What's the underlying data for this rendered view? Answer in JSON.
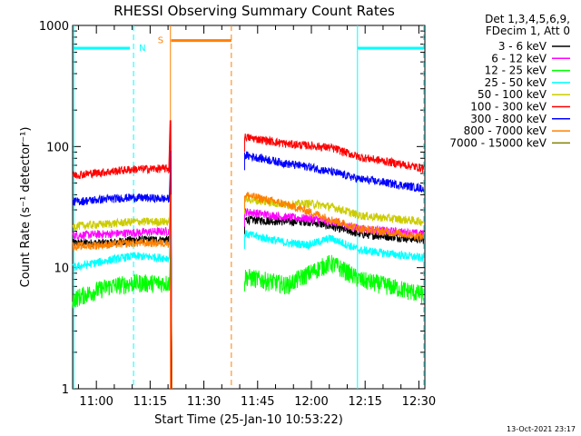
{
  "chart_data": {
    "type": "line",
    "title": "RHESSI Observing Summary Count Rates",
    "xlabel": "Start Time (25-Jan-10 10:53:22)",
    "ylabel": "Count Rate (s⁻¹ detector⁻¹)",
    "yscale": "log",
    "ylim": [
      1,
      1000
    ],
    "xlim_minutes": [
      0,
      98.3
    ],
    "xticks": [
      {
        "label": "11:00",
        "min": 6.63
      },
      {
        "label": "11:15",
        "min": 21.63
      },
      {
        "label": "11:30",
        "min": 36.63
      },
      {
        "label": "11:45",
        "min": 51.63
      },
      {
        "label": "12:00",
        "min": 66.63
      },
      {
        "label": "12:15",
        "min": 81.63
      },
      {
        "label": "12:30",
        "min": 96.63
      }
    ],
    "yticks": [
      {
        "label": "1",
        "value": 1
      },
      {
        "label": "10",
        "value": 10
      },
      {
        "label": "100",
        "value": 100
      },
      {
        "label": "1000",
        "value": 1000
      }
    ],
    "legend_header": [
      "Det 1,3,4,5,6,9,",
      "FDecim 1, Att 0"
    ],
    "series": [
      {
        "name": "3 - 6 keV",
        "color": "#000000",
        "seg1": [
          [
            0,
            16
          ],
          [
            10,
            16
          ],
          [
            17,
            17
          ],
          [
            27,
            17
          ]
        ],
        "seg2": [
          [
            48,
            25
          ],
          [
            60,
            24
          ],
          [
            66,
            24
          ],
          [
            72,
            22
          ],
          [
            80,
            19
          ],
          [
            98,
            17
          ]
        ]
      },
      {
        "name": "6 - 12 keV",
        "color": "#ff00ff",
        "seg1": [
          [
            0,
            18.5
          ],
          [
            10,
            19
          ],
          [
            17,
            19.5
          ],
          [
            27,
            20
          ]
        ],
        "seg2": [
          [
            48,
            29
          ],
          [
            60,
            26
          ],
          [
            66,
            25.5
          ],
          [
            72,
            24
          ],
          [
            80,
            21
          ],
          [
            98,
            19
          ]
        ]
      },
      {
        "name": "12 - 25 keV",
        "color": "#00ff00",
        "seg1": [
          [
            0,
            5.5
          ],
          [
            10,
            7
          ],
          [
            17,
            7.5
          ],
          [
            27,
            7.5
          ]
        ],
        "seg2": [
          [
            48,
            8.5
          ],
          [
            60,
            7.2
          ],
          [
            66,
            9
          ],
          [
            72,
            11
          ],
          [
            80,
            8
          ],
          [
            98,
            6
          ]
        ]
      },
      {
        "name": "25 - 50 keV",
        "color": "#00ffff",
        "seg1": [
          [
            0,
            10
          ],
          [
            10,
            11.5
          ],
          [
            17,
            12.5
          ],
          [
            27,
            12
          ]
        ],
        "seg2": [
          [
            48,
            19
          ],
          [
            60,
            16
          ],
          [
            66,
            15.5
          ],
          [
            72,
            17.5
          ],
          [
            80,
            14
          ],
          [
            98,
            12
          ]
        ]
      },
      {
        "name": "50 - 100 keV",
        "color": "#cccc00",
        "seg1": [
          [
            0,
            22
          ],
          [
            10,
            23
          ],
          [
            17,
            24
          ],
          [
            27,
            24
          ]
        ],
        "seg2": [
          [
            48,
            37
          ],
          [
            60,
            33
          ],
          [
            66,
            34
          ],
          [
            72,
            32
          ],
          [
            80,
            27
          ],
          [
            98,
            24
          ]
        ]
      },
      {
        "name": "100 - 300 keV",
        "color": "#ff0000",
        "seg1": [
          [
            0,
            58
          ],
          [
            10,
            62
          ],
          [
            17,
            65
          ],
          [
            27,
            66
          ]
        ],
        "seg2": [
          [
            48,
            120
          ],
          [
            60,
            105
          ],
          [
            66,
            102
          ],
          [
            72,
            98
          ],
          [
            80,
            82
          ],
          [
            98,
            66
          ]
        ]
      },
      {
        "name": "300 - 800 keV",
        "color": "#0000ff",
        "seg1": [
          [
            0,
            35
          ],
          [
            10,
            37
          ],
          [
            17,
            38
          ],
          [
            27,
            37
          ]
        ],
        "seg2": [
          [
            48,
            85
          ],
          [
            60,
            72
          ],
          [
            66,
            68
          ],
          [
            72,
            62
          ],
          [
            80,
            54
          ],
          [
            98,
            45
          ]
        ]
      },
      {
        "name": "800 - 7000 keV",
        "color": "#ff8000",
        "seg1": [
          [
            0,
            15
          ],
          [
            10,
            15.5
          ],
          [
            17,
            16
          ],
          [
            27,
            16
          ]
        ],
        "seg2": [
          [
            48,
            40
          ],
          [
            60,
            33
          ],
          [
            66,
            29
          ],
          [
            72,
            25
          ],
          [
            80,
            21
          ],
          [
            98,
            18
          ]
        ]
      },
      {
        "name": "7000 - 15000 keV",
        "color": "#808000",
        "seg1": [],
        "seg2": []
      }
    ],
    "annotations": [
      {
        "label": "N",
        "color": "#00ffff",
        "line_min": [
          0.3,
          17,
          79.5,
          98
        ],
        "bars_min": [
          [
            0.3,
            16
          ],
          [
            79.5,
            98
          ]
        ],
        "level": 650
      },
      {
        "label": "S",
        "color": "#ff8000",
        "line_min": [
          27.3,
          44.3
        ],
        "bars_min": [
          [
            27.5,
            44.3
          ]
        ],
        "level": 750
      }
    ],
    "timestamp": "13-Oct-2021 23:17"
  }
}
